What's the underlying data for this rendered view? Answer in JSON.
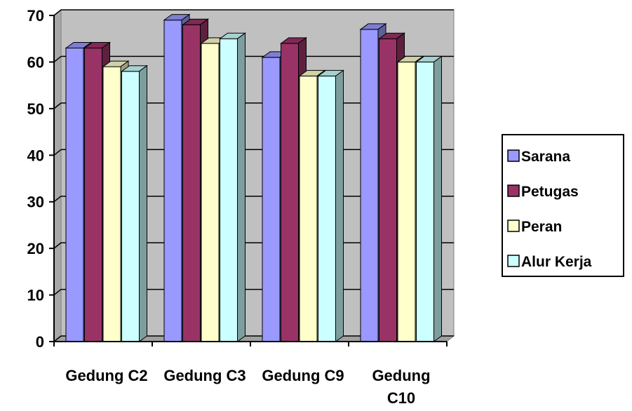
{
  "chart_data": {
    "type": "bar",
    "categories": [
      "Gedung C2",
      "Gedung C3",
      "Gedung C9",
      "Gedung C10"
    ],
    "category_lines": [
      [
        "Gedung C2"
      ],
      [
        "Gedung C3"
      ],
      [
        "Gedung C9"
      ],
      [
        "Gedung",
        "C10"
      ]
    ],
    "series": [
      {
        "name": "Sarana",
        "values": [
          63,
          69,
          61,
          67
        ],
        "color": "#9999FF"
      },
      {
        "name": "Petugas",
        "values": [
          63,
          68,
          64,
          65
        ],
        "color": "#993366"
      },
      {
        "name": "Peran",
        "values": [
          59,
          64,
          57,
          60
        ],
        "color": "#FFFFCC"
      },
      {
        "name": "Alur Kerja",
        "values": [
          58,
          65,
          57,
          60
        ],
        "color": "#CCFFFF"
      }
    ],
    "ylim": [
      0,
      70
    ],
    "yticks": [
      0,
      10,
      20,
      30,
      40,
      50,
      60,
      70
    ],
    "grid": true,
    "three_d": true,
    "legend_position": "right",
    "wall_color": "#C0C0C0"
  }
}
